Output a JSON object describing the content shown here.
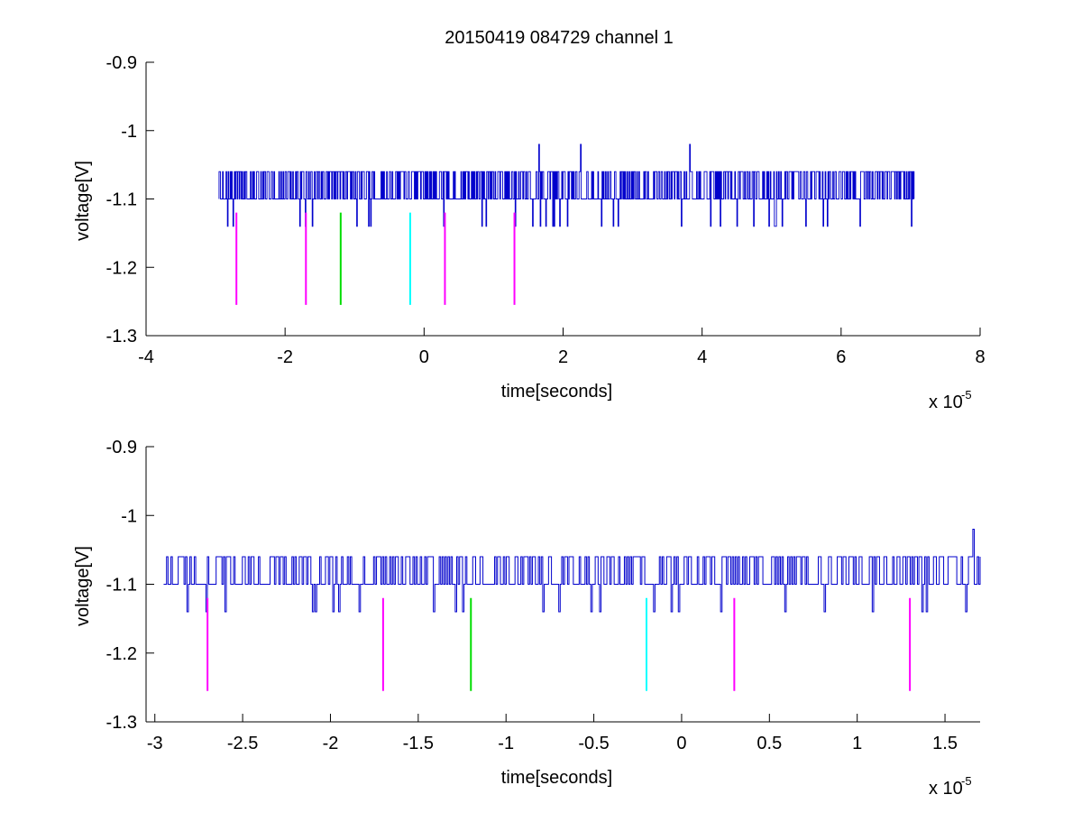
{
  "figure": {
    "title": "20150419 084729 channel 1",
    "background": "#ffffff"
  },
  "colors": {
    "signal": "#0000cc",
    "magenta": "#ff00ff",
    "green": "#00dd00",
    "cyan": "#00ffff",
    "axis": "#000000"
  },
  "chart_data": [
    {
      "type": "line",
      "title": "20150419 084729 channel 1",
      "xlabel": "time[seconds]",
      "ylabel": "voltage[V]",
      "x_multiplier_label": "x 10",
      "x_multiplier_exponent": "-5",
      "xlim": [
        -4,
        8
      ],
      "ylim": [
        -1.3,
        -0.9
      ],
      "xticks": [
        -4,
        -2,
        0,
        2,
        4,
        6,
        8
      ],
      "xtick_labels": [
        "-4",
        "-2",
        "0",
        "2",
        "4",
        "6",
        "8"
      ],
      "yticks": [
        -1.3,
        -1.2,
        -1.1,
        -1.0,
        -0.9
      ],
      "ytick_labels": [
        "-1.3",
        "-1.2",
        "-1.1",
        "-1",
        "-0.9"
      ],
      "grid": false,
      "series": [
        {
          "color": "#0000cc",
          "x_range": [
            -2.95,
            7.05
          ],
          "baseline": -1.1,
          "levels": [
            -1.06,
            -1.1,
            -1.14
          ],
          "spikes": [
            {
              "x": 1.65,
              "y": -1.02
            },
            {
              "x": 2.25,
              "y": -1.02
            },
            {
              "x": 3.82,
              "y": -1.02
            }
          ]
        }
      ],
      "markers": [
        {
          "x": -2.7,
          "y_top": -1.12,
          "y_bottom": -1.255,
          "color": "#ff00ff"
        },
        {
          "x": -1.7,
          "y_top": -1.12,
          "y_bottom": -1.255,
          "color": "#ff00ff"
        },
        {
          "x": -1.2,
          "y_top": -1.12,
          "y_bottom": -1.255,
          "color": "#00dd00"
        },
        {
          "x": -0.2,
          "y_top": -1.12,
          "y_bottom": -1.255,
          "color": "#00ffff"
        },
        {
          "x": 0.3,
          "y_top": -1.12,
          "y_bottom": -1.255,
          "color": "#ff00ff"
        },
        {
          "x": 1.3,
          "y_top": -1.12,
          "y_bottom": -1.255,
          "color": "#ff00ff"
        }
      ]
    },
    {
      "type": "line",
      "title": "",
      "xlabel": "time[seconds]",
      "ylabel": "voltage[V]",
      "x_multiplier_label": "x 10",
      "x_multiplier_exponent": "-5",
      "xlim": [
        -3.05,
        1.7
      ],
      "ylim": [
        -1.3,
        -0.9
      ],
      "xticks": [
        -3,
        -2.5,
        -2,
        -1.5,
        -1,
        -0.5,
        0,
        0.5,
        1,
        1.5
      ],
      "xtick_labels": [
        "-3",
        "-2.5",
        "-2",
        "-1.5",
        "-1",
        "-0.5",
        "0",
        "0.5",
        "1",
        "1.5"
      ],
      "yticks": [
        -1.3,
        -1.2,
        -1.1,
        -1.0,
        -0.9
      ],
      "ytick_labels": [
        "-1.3",
        "-1.2",
        "-1.1",
        "-1",
        "-0.9"
      ],
      "grid": false,
      "series": [
        {
          "color": "#0000cc",
          "x_range": [
            -2.95,
            1.7
          ],
          "baseline": -1.1,
          "levels": [
            -1.06,
            -1.1,
            -1.14
          ],
          "spikes": [
            {
              "x": 1.66,
              "y": -1.02
            }
          ]
        }
      ],
      "markers": [
        {
          "x": -2.7,
          "y_top": -1.12,
          "y_bottom": -1.255,
          "color": "#ff00ff"
        },
        {
          "x": -1.7,
          "y_top": -1.12,
          "y_bottom": -1.255,
          "color": "#ff00ff"
        },
        {
          "x": -1.2,
          "y_top": -1.12,
          "y_bottom": -1.255,
          "color": "#00dd00"
        },
        {
          "x": -0.2,
          "y_top": -1.12,
          "y_bottom": -1.255,
          "color": "#00ffff"
        },
        {
          "x": 0.3,
          "y_top": -1.12,
          "y_bottom": -1.255,
          "color": "#ff00ff"
        },
        {
          "x": 1.3,
          "y_top": -1.12,
          "y_bottom": -1.255,
          "color": "#ff00ff"
        }
      ]
    }
  ]
}
